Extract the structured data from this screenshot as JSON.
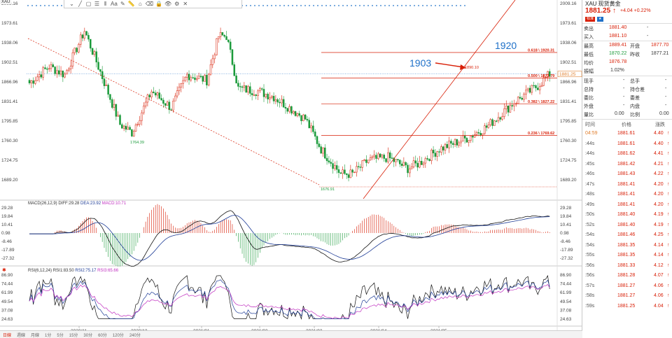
{
  "window": {
    "title": "XAU 現貨黃金",
    "title_prefix": "XAU",
    "title_accent": ""
  },
  "toolbar": {
    "items": [
      "chevron-down",
      "line",
      "rect",
      "fib",
      "channel",
      "text",
      "pencil",
      "ruler",
      "home",
      "eraser",
      "lock",
      "eye",
      "gear",
      "close"
    ],
    "text_tool_label": "Aa"
  },
  "price_axis": {
    "labels": [
      "2009.16",
      "1973.61",
      "1938.06",
      "1902.51",
      "1866.96",
      "1831.41",
      "1795.85",
      "1760.30",
      "1724.75",
      "1689.20"
    ],
    "current_tag": "1881.25"
  },
  "macd_axis": {
    "labels": [
      "29.28",
      "19.84",
      "10.41",
      "0.98",
      "-8.46",
      "-17.89",
      "-27.32"
    ]
  },
  "rsi_axis": {
    "labels": [
      "86.90",
      "74.44",
      "61.99",
      "49.54",
      "37.08",
      "24.63"
    ]
  },
  "date_axis": {
    "labels": [
      "2020/11",
      "2020/12",
      "2021/01",
      "2021/02",
      "2021/03",
      "2021/04",
      "2021/05"
    ]
  },
  "fib_levels": [
    {
      "label": "0.618 \\ 1920.31",
      "value": 1920.31
    },
    {
      "label": "0.500 \\ 1873.79",
      "value": 1873.79
    },
    {
      "label": "0.382 \\ 1827.22",
      "value": 1827.22
    },
    {
      "label": "0.236 \\ 1769.62",
      "value": 1769.62
    }
  ],
  "annotations": {
    "a1903": "1903",
    "a1920": "1920",
    "high_mark": "1890.10",
    "low_mark_1": "1764.39",
    "low_mark_2": "1676.91"
  },
  "macd_title": {
    "name": "MACD(26,12,9)",
    "diff": "DIFF:29.28",
    "dea": "DEA:23.92",
    "macd": "MACD:10.71"
  },
  "rsi_title": {
    "name": "RSI(6,12,24)",
    "r1": "RSI1:83.50",
    "r2": "RSI2:75.17",
    "r3": "RSI3:65.66"
  },
  "periods": {
    "selected": "日線",
    "items": [
      "日線",
      "週線",
      "月線",
      "1分",
      "5分",
      "15分",
      "30分",
      "60分",
      "120分",
      "240分"
    ]
  },
  "quote": {
    "name": "XAU 现货黄金",
    "price": "1881.25",
    "arrow": "↑",
    "change": "+4.04",
    "change_pct": "+0.22%",
    "btn1": "标准",
    "btn2": "★",
    "sell_label": "卖出",
    "sell": "1881.40",
    "sell_vol": "-",
    "buy_label": "买入",
    "buy": "1881.10",
    "buy_vol": "-",
    "high_label": "最高",
    "high": "1889.41",
    "open_label": "开盘",
    "open": "1877.70",
    "low_label": "最低",
    "low": "1870.22",
    "prev_label": "昨收",
    "prev": "1877.21",
    "avg_label": "均价",
    "avg": "1876.78",
    "amp_label": "振幅",
    "amp": "1.02%",
    "vol_label": "现手",
    "vol": "-",
    "total_label": "总手",
    "total": "-",
    "hold_label": "总持",
    "hold": "-",
    "hold_chg_label": "持仓差",
    "hold_chg": "-",
    "ratio_label": "委比",
    "ratio": "-",
    "diff_label": "委差",
    "diff": "-",
    "outer_label": "外盘",
    "outer": "-",
    "inner_label": "内盘",
    "inner": "-",
    "volratio_label": "量比",
    "volratio": "0.00",
    "cmp_label": "比例",
    "cmp": "0.00"
  },
  "ticks": {
    "headers": [
      "时间",
      "价格",
      "涨跌"
    ],
    "rows": [
      {
        "t": "04:59",
        "p": "1881.61",
        "c": "4.40"
      },
      {
        "t": ":44s",
        "p": "1881.61",
        "c": "4.40"
      },
      {
        "t": ":44s",
        "p": "1881.62",
        "c": "4.41"
      },
      {
        "t": ":45s",
        "p": "1881.42",
        "c": "4.21"
      },
      {
        "t": ":46s",
        "p": "1881.43",
        "c": "4.22"
      },
      {
        "t": ":47s",
        "p": "1881.41",
        "c": "4.20"
      },
      {
        "t": ":48s",
        "p": "1881.41",
        "c": "4.20"
      },
      {
        "t": ":49s",
        "p": "1881.41",
        "c": "4.20"
      },
      {
        "t": ":50s",
        "p": "1881.40",
        "c": "4.19"
      },
      {
        "t": ":52s",
        "p": "1881.40",
        "c": "4.19"
      },
      {
        "t": ":54s",
        "p": "1881.46",
        "c": "4.25"
      },
      {
        "t": ":54s",
        "p": "1881.35",
        "c": "4.14"
      },
      {
        "t": ":55s",
        "p": "1881.35",
        "c": "4.14"
      },
      {
        "t": ":56s",
        "p": "1881.33",
        "c": "4.12"
      },
      {
        "t": ":56s",
        "p": "1881.28",
        "c": "4.07"
      },
      {
        "t": ":57s",
        "p": "1881.27",
        "c": "4.06"
      },
      {
        "t": ":58s",
        "p": "1881.27",
        "c": "4.06"
      },
      {
        "t": ":59s",
        "p": "1881.25",
        "c": "4.04"
      }
    ]
  },
  "colors": {
    "up": "#d81e06",
    "down": "#1a9a3a",
    "accent": "#1e70c8",
    "fib": "#d81e06"
  }
}
